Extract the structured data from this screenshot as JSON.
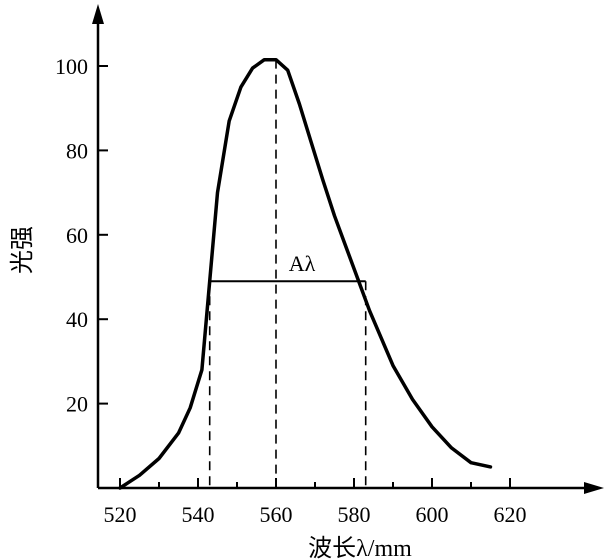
{
  "chart_data": {
    "type": "line",
    "xlabel": "波长λ/mm",
    "ylabel": "光强",
    "xlim": [
      520,
      632
    ],
    "ylim": [
      0,
      112
    ],
    "xticks": [
      520,
      540,
      560,
      580,
      600,
      620
    ],
    "yticks": [
      20,
      40,
      60,
      80,
      100
    ],
    "grid": false,
    "series": [
      {
        "x": [
          520,
          525,
          530,
          535,
          538,
          541,
          543,
          545,
          548,
          551,
          554,
          557,
          560,
          563,
          566,
          569,
          572,
          575,
          578,
          581,
          584,
          587,
          590,
          595,
          600,
          605,
          610,
          615
        ],
        "y": [
          0,
          3,
          7,
          13,
          19,
          28,
          49,
          70,
          87,
          95,
          99.5,
          101.5,
          101.5,
          99,
          91,
          82,
          73,
          64.5,
          57,
          49.5,
          42,
          35.5,
          29,
          21,
          14.5,
          9.5,
          6,
          5
        ]
      }
    ],
    "annotations": {
      "peak_x": 560,
      "half_left_x": 543,
      "half_right_x": 583,
      "half_y": 49,
      "width_label": "Aλ"
    }
  }
}
